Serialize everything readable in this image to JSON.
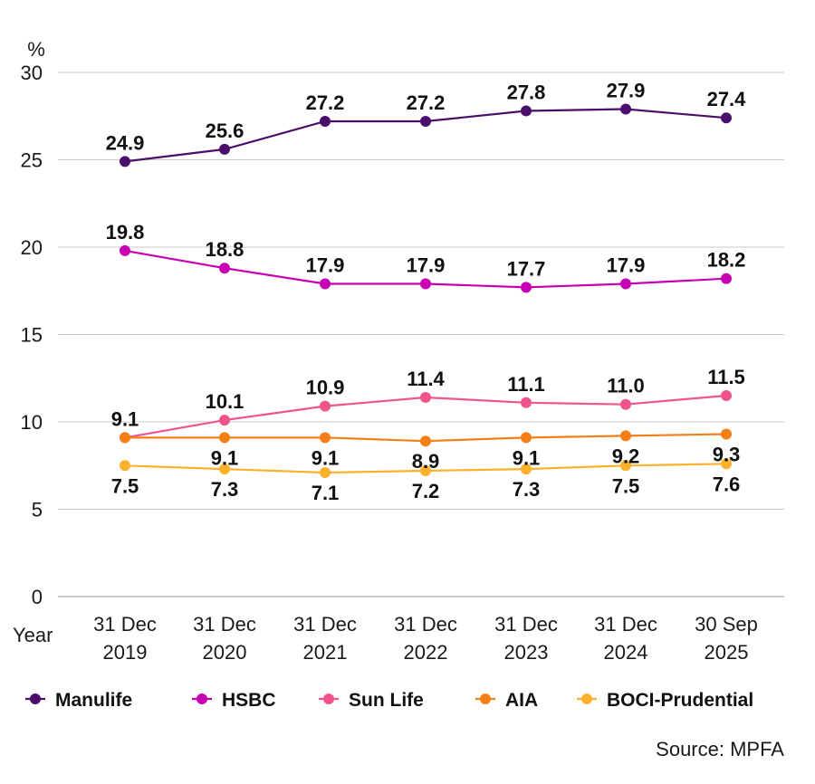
{
  "chart_data": {
    "type": "line",
    "ylabel": "%",
    "xlabel": "Year",
    "ylim": [
      0,
      30
    ],
    "yticks": [
      "0",
      "5",
      "10",
      "15",
      "20",
      "25",
      "30"
    ],
    "categories": [
      [
        "31 Dec",
        "2019"
      ],
      [
        "31 Dec",
        "2020"
      ],
      [
        "31 Dec",
        "2021"
      ],
      [
        "31 Dec",
        "2022"
      ],
      [
        "31 Dec",
        "2023"
      ],
      [
        "31 Dec",
        "2024"
      ],
      [
        "30 Sep",
        "2025"
      ]
    ],
    "series": [
      {
        "name": "Manulife",
        "color": "#4b0f6b",
        "values": [
          24.9,
          25.6,
          27.2,
          27.2,
          27.8,
          27.9,
          27.4
        ],
        "labels": [
          "24.9",
          "25.6",
          "27.2",
          "27.2",
          "27.8",
          "27.9",
          "27.4"
        ],
        "label_position": "above"
      },
      {
        "name": "HSBC",
        "color": "#c800b4",
        "values": [
          19.8,
          18.8,
          17.9,
          17.9,
          17.7,
          17.9,
          18.2
        ],
        "labels": [
          "19.8",
          "18.8",
          "17.9",
          "17.9",
          "17.7",
          "17.9",
          "18.2"
        ],
        "label_position": "above"
      },
      {
        "name": "Sun Life",
        "color": "#f0548c",
        "values": [
          9.1,
          10.1,
          10.9,
          11.4,
          11.1,
          11.0,
          11.5
        ],
        "labels": [
          "9.1",
          "10.1",
          "10.9",
          "11.4",
          "11.1",
          "11.0",
          "11.5"
        ],
        "label_position": "above"
      },
      {
        "name": "AIA",
        "color": "#f57f17",
        "values": [
          9.1,
          9.1,
          9.1,
          8.9,
          9.1,
          9.2,
          9.3
        ],
        "labels": [
          "",
          "9.1",
          "9.1",
          "8.9",
          "9.1",
          "9.2",
          "9.3"
        ],
        "label_position": "below"
      },
      {
        "name": "BOCI-Prudential",
        "color": "#fbb12c",
        "values": [
          7.5,
          7.3,
          7.1,
          7.2,
          7.3,
          7.5,
          7.6
        ],
        "labels": [
          "7.5",
          "7.3",
          "7.1",
          "7.2",
          "7.3",
          "7.5",
          "7.6"
        ],
        "label_position": "below"
      }
    ],
    "grid": true,
    "legend_position": "bottom",
    "source": "Source: MPFA"
  }
}
